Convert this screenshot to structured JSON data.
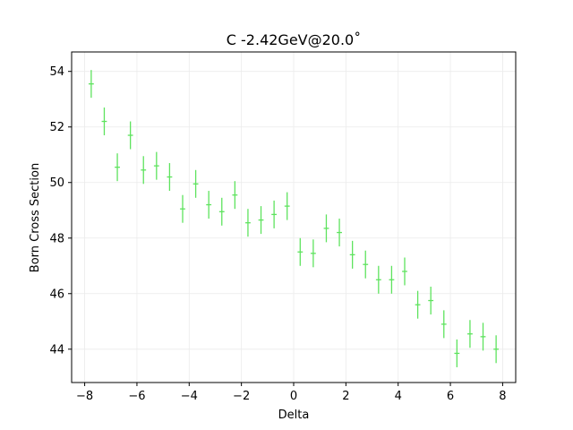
{
  "chart_data": {
    "type": "scatter",
    "title": "C -2.42GeV@20.0˚",
    "xlabel": "Delta",
    "ylabel": "Born Cross Section",
    "xlim": [
      -8.5,
      8.5
    ],
    "ylim": [
      42.8,
      54.7
    ],
    "xticks": [
      -8,
      -6,
      -4,
      -2,
      0,
      2,
      4,
      6,
      8
    ],
    "yticks": [
      44,
      46,
      48,
      50,
      52,
      54
    ],
    "grid": true,
    "marker_color": "#5ee35e",
    "series": [
      {
        "x": [
          -7.75,
          -7.25,
          -6.75,
          -6.25,
          -5.75,
          -5.25,
          -4.75,
          -4.25,
          -3.75,
          -3.25,
          -2.75,
          -2.25,
          -1.75,
          -1.25,
          -0.75,
          -0.25,
          0.25,
          0.75,
          1.25,
          1.75,
          2.25,
          2.75,
          3.25,
          3.75,
          4.25,
          4.75,
          5.25,
          5.75,
          6.25,
          6.75,
          7.25,
          7.75
        ],
        "y": [
          53.55,
          52.2,
          50.55,
          51.7,
          50.45,
          50.6,
          50.2,
          49.05,
          49.95,
          49.2,
          48.95,
          49.55,
          48.55,
          48.65,
          48.85,
          49.15,
          47.5,
          47.45,
          48.35,
          48.2,
          47.4,
          47.05,
          46.5,
          46.5,
          46.8,
          45.6,
          45.75,
          44.9,
          43.85,
          44.55,
          44.45,
          44.0
        ],
        "yerr": [
          0.5,
          0.5,
          0.5,
          0.5,
          0.5,
          0.5,
          0.5,
          0.5,
          0.5,
          0.5,
          0.5,
          0.5,
          0.5,
          0.5,
          0.5,
          0.5,
          0.5,
          0.5,
          0.5,
          0.5,
          0.5,
          0.5,
          0.5,
          0.5,
          0.5,
          0.5,
          0.5,
          0.5,
          0.5,
          0.5,
          0.5,
          0.5
        ],
        "xerr": [
          0.1,
          0.1,
          0.1,
          0.1,
          0.1,
          0.1,
          0.1,
          0.1,
          0.1,
          0.1,
          0.1,
          0.1,
          0.1,
          0.1,
          0.1,
          0.1,
          0.1,
          0.1,
          0.1,
          0.1,
          0.1,
          0.1,
          0.1,
          0.1,
          0.1,
          0.1,
          0.1,
          0.1,
          0.1,
          0.1,
          0.1,
          0.1
        ]
      }
    ]
  }
}
